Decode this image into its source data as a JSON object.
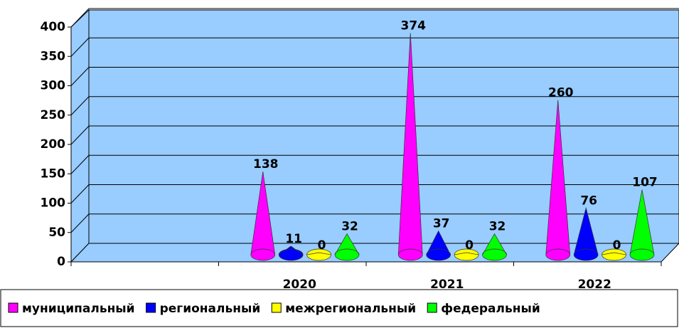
{
  "chart_data": {
    "type": "cone3d",
    "categories": [
      null,
      "2020",
      "2021",
      "2022"
    ],
    "series": [
      {
        "name": "муниципальный",
        "color": "#ff00ff",
        "values": [
          null,
          138,
          374,
          260
        ]
      },
      {
        "name": "региональный",
        "color": "#0000ff",
        "values": [
          null,
          11,
          37,
          76
        ]
      },
      {
        "name": "межрегиональный",
        "color": "#ffff00",
        "values": [
          null,
          0,
          0,
          0
        ]
      },
      {
        "name": "федеральный",
        "color": "#00ff00",
        "values": [
          null,
          32,
          32,
          107
        ]
      }
    ],
    "ylim": [
      0,
      400
    ],
    "yticks": [
      0,
      50,
      100,
      150,
      200,
      250,
      300,
      350,
      400
    ],
    "grid": true,
    "legend": "bottom"
  }
}
